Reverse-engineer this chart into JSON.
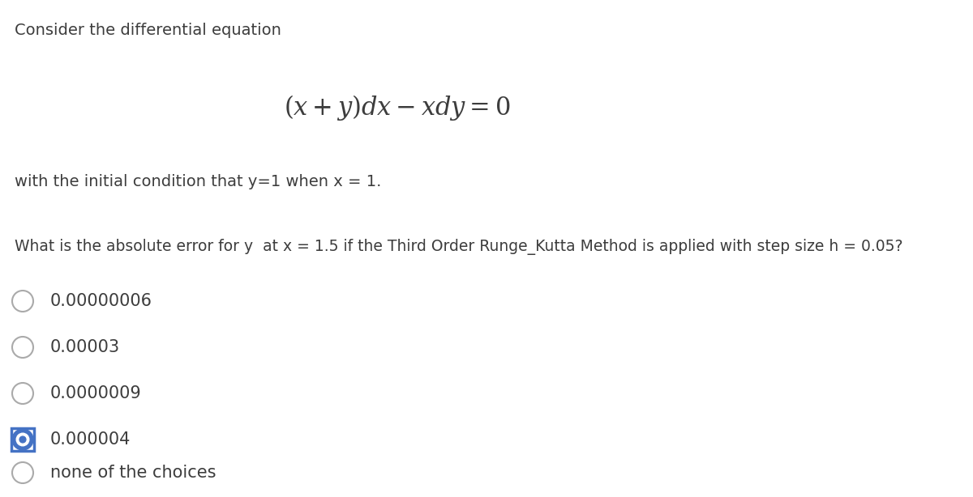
{
  "title_text": "Consider the differential equation",
  "condition_text": "with the initial condition that y=1 when x = 1.",
  "question_text": "What is the absolute error for y  at x = 1.5 if the Third Order Runge_Kutta Method is applied with step size h = 0.05?",
  "options": [
    "0.00000006",
    "0.00003",
    "0.0000009",
    "0.000004",
    "none of the choices"
  ],
  "selected_index": 3,
  "bg_color": "#ffffff",
  "text_color": "#3d3d3d",
  "selected_circle_fill": "#4472C4",
  "selected_circle_border": "#4472C4",
  "unselected_circle_color": "#aaaaaa",
  "title_fontsize": 14,
  "equation_fontsize": 22,
  "condition_fontsize": 14,
  "question_fontsize": 13.5,
  "option_fontsize": 15
}
